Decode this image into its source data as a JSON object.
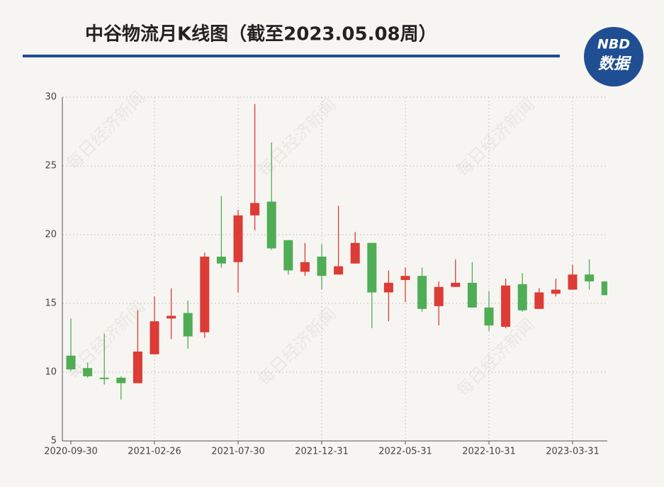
{
  "chart_data": {
    "type": "candlestick",
    "title": "中谷物流月K线图（截至2023.05.08周）",
    "logo": {
      "top": "NBD",
      "bottom": "数据"
    },
    "watermark": "每日经济新闻",
    "categories": [
      "2020-09-30",
      null,
      null,
      null,
      null,
      "2021-02-26",
      null,
      null,
      null,
      null,
      "2021-07-30",
      null,
      null,
      null,
      null,
      "2021-12-31",
      null,
      null,
      null,
      null,
      "2022-05-31",
      null,
      null,
      null,
      null,
      "2022-10-31",
      null,
      null,
      null,
      null,
      "2023-03-31",
      null,
      null
    ],
    "open": [
      11.2,
      10.3,
      9.6,
      9.6,
      9.2,
      11.3,
      13.9,
      14.3,
      12.9,
      18.4,
      18.0,
      21.4,
      22.4,
      19.6,
      17.3,
      18.4,
      17.1,
      17.9,
      19.4,
      15.8,
      16.7,
      17.0,
      14.8,
      16.2,
      16.5,
      14.7,
      13.3,
      16.4,
      14.6,
      15.7,
      16.0,
      17.1,
      16.6
    ],
    "close": [
      10.2,
      9.7,
      9.5,
      9.2,
      11.5,
      13.7,
      14.1,
      12.6,
      18.4,
      17.9,
      21.4,
      22.3,
      19.0,
      17.4,
      18.0,
      17.0,
      17.7,
      19.4,
      15.8,
      16.5,
      17.0,
      14.6,
      16.2,
      16.5,
      14.7,
      13.4,
      16.3,
      14.5,
      15.8,
      16.0,
      17.1,
      16.6,
      15.6
    ],
    "low": [
      10.1,
      9.6,
      9.1,
      8.0,
      9.2,
      11.3,
      12.4,
      11.7,
      12.5,
      17.6,
      15.8,
      20.3,
      18.9,
      17.1,
      17.0,
      16.0,
      17.1,
      17.9,
      13.2,
      13.7,
      15.1,
      14.4,
      13.4,
      16.2,
      14.7,
      13.0,
      13.2,
      14.4,
      14.6,
      15.5,
      16.0,
      16.0,
      15.6
    ],
    "high": [
      13.9,
      10.7,
      12.8,
      9.7,
      14.5,
      15.5,
      16.1,
      15.2,
      18.7,
      22.8,
      21.8,
      29.5,
      26.7,
      19.6,
      19.4,
      19.3,
      22.1,
      20.2,
      19.4,
      17.4,
      17.6,
      17.6,
      16.6,
      18.2,
      18.0,
      15.9,
      16.8,
      17.2,
      16.1,
      16.8,
      17.8,
      18.2,
      16.6
    ],
    "up_color": "#dc3b36",
    "down_color": "#4fad55",
    "ylim": [
      5,
      30
    ],
    "yticks": [
      5,
      10,
      15,
      20,
      25,
      30
    ],
    "grid": true
  }
}
